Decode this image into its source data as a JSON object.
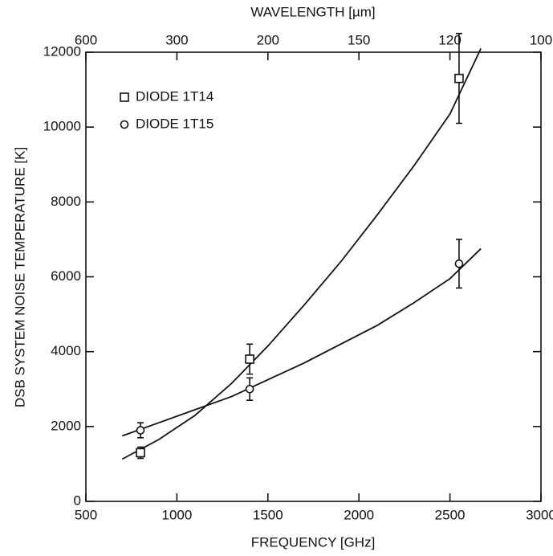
{
  "chart_data": {
    "type": "scatter",
    "xlabel": "FREQUENCY [GHz]",
    "ylabel": "DSB SYSTEM NOISE TEMPERATURE [K]",
    "x2label": "WAVELENGTH [µm]",
    "xlim": [
      500,
      3000
    ],
    "xticks": [
      500,
      1000,
      1500,
      2000,
      2500,
      3000
    ],
    "ylim": [
      0,
      12000
    ],
    "yticks": [
      0,
      2000,
      4000,
      6000,
      8000,
      10000,
      12000
    ],
    "x2ticks": [
      {
        "value": 500,
        "label": "600"
      },
      {
        "value": 1000,
        "label": "300"
      },
      {
        "value": 1500,
        "label": "200"
      },
      {
        "value": 2000,
        "label": "150"
      },
      {
        "value": 2500,
        "label": "120"
      },
      {
        "value": 3000,
        "label": "100"
      }
    ],
    "legend": "upper left",
    "series": [
      {
        "name": "DIODE 1T14",
        "marker": "square",
        "color": "#111111",
        "x": [
          800,
          1400,
          2550
        ],
        "values": [
          1300,
          3800,
          11300
        ],
        "errors": [
          150,
          400,
          1200
        ]
      },
      {
        "name": "DIODE 1T15",
        "marker": "circle",
        "color": "#111111",
        "x": [
          800,
          1400,
          2550
        ],
        "values": [
          1900,
          3000,
          6350
        ],
        "errors": [
          200,
          300,
          650
        ]
      }
    ],
    "fits": [
      {
        "x": [
          700,
          900,
          1100,
          1300,
          1500,
          1700,
          1900,
          2100,
          2300,
          2500,
          2670
        ],
        "values": [
          1130,
          1650,
          2300,
          3150,
          4150,
          5250,
          6400,
          7650,
          8950,
          10350,
          12100
        ]
      },
      {
        "x": [
          700,
          900,
          1100,
          1300,
          1500,
          1700,
          1900,
          2100,
          2300,
          2500,
          2670
        ],
        "values": [
          1750,
          2100,
          2450,
          2800,
          3250,
          3700,
          4200,
          4700,
          5300,
          5950,
          6750
        ]
      }
    ]
  }
}
